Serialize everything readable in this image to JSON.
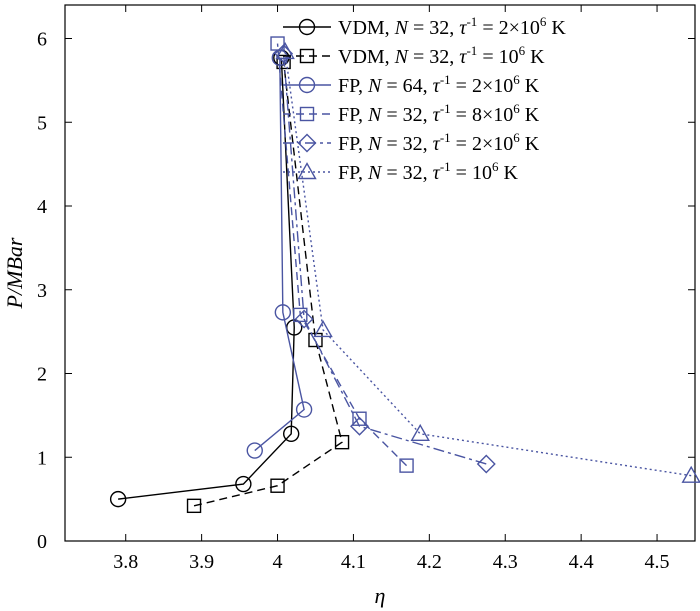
{
  "chart_data": {
    "type": "line",
    "xlabel": "η",
    "ylabel": "P/MBar",
    "xlim": [
      3.72,
      4.55
    ],
    "ylim": [
      0,
      6.4
    ],
    "xticks": [
      "3.8",
      "3.9",
      "4",
      "4.1",
      "4.2",
      "4.3",
      "4.4",
      "4.5"
    ],
    "yticks": [
      "0",
      "1",
      "2",
      "3",
      "4",
      "5",
      "6"
    ],
    "grid": false,
    "legend_position": "top-right",
    "series": [
      {
        "name": "VDM, N = 32, τ⁻¹ = 2×10⁶ K",
        "legend": {
          "prefix": "VDM, ",
          "var": "N",
          "mid": " = 32, ",
          "var2": "τ",
          "sup1": "-1",
          "rest": " = 2×10",
          "sup2": "6",
          "tail": " K"
        },
        "color": "#000000",
        "marker": "circle",
        "linestyle": "solid",
        "x": [
          3.79,
          3.955,
          4.018,
          4.022,
          4.005
        ],
        "y": [
          0.5,
          0.68,
          1.28,
          2.55,
          5.77
        ]
      },
      {
        "name": "VDM, N = 32, τ⁻¹ = 10⁶ K",
        "legend": {
          "prefix": "VDM, ",
          "var": "N",
          "mid": " = 32, ",
          "var2": "τ",
          "sup1": "-1",
          "rest": " = 10",
          "sup2": "6",
          "tail": " K"
        },
        "color": "#000000",
        "marker": "square",
        "linestyle": "dashed",
        "x": [
          3.89,
          4.0,
          4.085,
          4.05,
          4.008
        ],
        "y": [
          0.42,
          0.66,
          1.18,
          2.4,
          5.72
        ]
      },
      {
        "name": "FP, N = 64, τ⁻¹ = 2×10⁶ K",
        "legend": {
          "prefix": "FP, ",
          "var": "N",
          "mid": " = 64, ",
          "var2": "τ",
          "sup1": "-1",
          "rest": " = 2×10",
          "sup2": "6",
          "tail": " K"
        },
        "color": "#4a55a2",
        "marker": "circle",
        "linestyle": "solid",
        "x": [
          3.97,
          4.035,
          4.007,
          4.003
        ],
        "y": [
          1.08,
          1.57,
          2.73,
          5.77
        ]
      },
      {
        "name": "FP, N = 32, τ⁻¹ = 8×10⁶ K",
        "legend": {
          "prefix": "FP, ",
          "var": "N",
          "mid": " = 32, ",
          "var2": "τ",
          "sup1": "-1",
          "rest": " = 8×10",
          "sup2": "6",
          "tail": " K"
        },
        "color": "#4a55a2",
        "marker": "square",
        "linestyle": "dashed",
        "x": [
          4.17,
          4.108,
          4.03,
          4.0
        ],
        "y": [
          0.9,
          1.46,
          2.7,
          5.94
        ]
      },
      {
        "name": "FP, N = 32, τ⁻¹ = 2×10⁶ K",
        "legend": {
          "prefix": "FP, ",
          "var": "N",
          "mid": " = 32, ",
          "var2": "τ",
          "sup1": "-1",
          "rest": " = 2×10",
          "sup2": "6",
          "tail": " K"
        },
        "color": "#4a55a2",
        "marker": "diamond",
        "linestyle": "dashdot",
        "x": [
          4.275,
          4.108,
          4.035,
          4.008
        ],
        "y": [
          0.92,
          1.37,
          2.65,
          5.82
        ]
      },
      {
        "name": "FP, N = 32, τ⁻¹ = 10⁶ K",
        "legend": {
          "prefix": "FP, ",
          "var": "N",
          "mid": " = 32, ",
          "var2": "τ",
          "sup1": "-1",
          "rest": " = 10",
          "sup2": "6",
          "tail": " K"
        },
        "color": "#4a55a2",
        "marker": "triangle",
        "linestyle": "dotted",
        "x": [
          4.545,
          4.188,
          4.06,
          4.01
        ],
        "y": [
          0.78,
          1.28,
          2.52,
          5.84
        ]
      }
    ]
  }
}
